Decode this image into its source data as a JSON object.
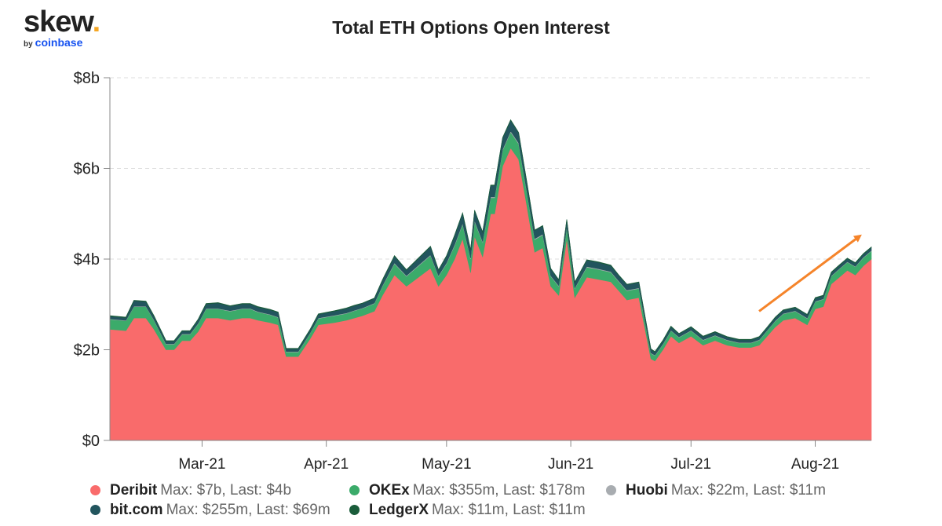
{
  "logo": {
    "main": "skew",
    "dot": ".",
    "by": "by",
    "brand": "coinbase"
  },
  "chart_data": {
    "type": "area",
    "stacked": true,
    "title": "Total ETH Options Open Interest",
    "xlabel": "",
    "ylabel": "",
    "ylim": [
      0,
      8
    ],
    "y_ticks": [
      0,
      2,
      4,
      6,
      8
    ],
    "y_tick_labels": [
      "$0",
      "$2b",
      "$4b",
      "$6b",
      "$8b"
    ],
    "x_range": [
      "2021-02-06",
      "2021-08-15"
    ],
    "x_ticks": [
      "2021-03-01",
      "2021-04-01",
      "2021-05-01",
      "2021-06-01",
      "2021-07-01",
      "2021-08-01"
    ],
    "x_tick_labels": [
      "Mar-21",
      "Apr-21",
      "May-21",
      "Jun-21",
      "Jul-21",
      "Aug-21"
    ],
    "grid": "horizontal dashed",
    "legend_position": "bottom",
    "dates": [
      "2021-02-06",
      "2021-02-10",
      "2021-02-12",
      "2021-02-15",
      "2021-02-17",
      "2021-02-20",
      "2021-02-22",
      "2021-02-24",
      "2021-02-26",
      "2021-02-28",
      "2021-03-02",
      "2021-03-05",
      "2021-03-08",
      "2021-03-11",
      "2021-03-13",
      "2021-03-15",
      "2021-03-18",
      "2021-03-20",
      "2021-03-22",
      "2021-03-25",
      "2021-03-28",
      "2021-03-30",
      "2021-04-03",
      "2021-04-06",
      "2021-04-08",
      "2021-04-10",
      "2021-04-13",
      "2021-04-15",
      "2021-04-18",
      "2021-04-21",
      "2021-04-24",
      "2021-04-27",
      "2021-04-29",
      "2021-05-01",
      "2021-05-03",
      "2021-05-05",
      "2021-05-07",
      "2021-05-08",
      "2021-05-10",
      "2021-05-12",
      "2021-05-13",
      "2021-05-15",
      "2021-05-17",
      "2021-05-19",
      "2021-05-21",
      "2021-05-23",
      "2021-05-25",
      "2021-05-27",
      "2021-05-29",
      "2021-05-31",
      "2021-06-02",
      "2021-06-05",
      "2021-06-08",
      "2021-06-11",
      "2021-06-13",
      "2021-06-15",
      "2021-06-18",
      "2021-06-21",
      "2021-06-22",
      "2021-06-24",
      "2021-06-26",
      "2021-06-28",
      "2021-07-01",
      "2021-07-04",
      "2021-07-07",
      "2021-07-10",
      "2021-07-13",
      "2021-07-16",
      "2021-07-18",
      "2021-07-20",
      "2021-07-22",
      "2021-07-24",
      "2021-07-27",
      "2021-07-30",
      "2021-08-01",
      "2021-08-03",
      "2021-08-05",
      "2021-08-07",
      "2021-08-09",
      "2021-08-11",
      "2021-08-13",
      "2021-08-15"
    ],
    "series": [
      {
        "name": "Deribit",
        "color": "#f96b6b",
        "values": [
          2.45,
          2.42,
          2.7,
          2.7,
          2.45,
          2.0,
          2.0,
          2.2,
          2.2,
          2.4,
          2.7,
          2.7,
          2.65,
          2.7,
          2.7,
          2.65,
          2.6,
          2.55,
          1.85,
          1.85,
          2.25,
          2.55,
          2.6,
          2.65,
          2.7,
          2.75,
          2.85,
          3.2,
          3.65,
          3.4,
          3.6,
          3.8,
          3.4,
          3.65,
          4.0,
          4.45,
          3.7,
          4.5,
          4.05,
          5.0,
          5.0,
          6.05,
          6.45,
          6.2,
          5.2,
          4.15,
          4.25,
          3.4,
          3.2,
          4.45,
          3.15,
          3.6,
          3.55,
          3.5,
          3.3,
          3.1,
          3.15,
          1.8,
          1.75,
          2.0,
          2.3,
          2.15,
          2.3,
          2.1,
          2.2,
          2.1,
          2.05,
          2.05,
          2.1,
          2.3,
          2.5,
          2.65,
          2.7,
          2.55,
          2.9,
          2.95,
          3.45,
          3.6,
          3.75,
          3.65,
          3.85,
          4.0
        ]
      },
      {
        "name": "OKEx",
        "color": "#3bab6a",
        "values": [
          0.22,
          0.22,
          0.25,
          0.25,
          0.2,
          0.12,
          0.12,
          0.14,
          0.14,
          0.17,
          0.2,
          0.2,
          0.2,
          0.2,
          0.2,
          0.18,
          0.17,
          0.16,
          0.1,
          0.1,
          0.12,
          0.14,
          0.15,
          0.15,
          0.16,
          0.16,
          0.17,
          0.2,
          0.25,
          0.22,
          0.25,
          0.28,
          0.22,
          0.25,
          0.3,
          0.32,
          0.3,
          0.33,
          0.32,
          0.35,
          0.35,
          0.35,
          0.35,
          0.34,
          0.3,
          0.28,
          0.28,
          0.22,
          0.2,
          0.25,
          0.2,
          0.22,
          0.22,
          0.21,
          0.2,
          0.2,
          0.2,
          0.12,
          0.12,
          0.12,
          0.12,
          0.12,
          0.12,
          0.11,
          0.11,
          0.11,
          0.1,
          0.1,
          0.11,
          0.12,
          0.13,
          0.14,
          0.15,
          0.14,
          0.16,
          0.16,
          0.17,
          0.18,
          0.18,
          0.18,
          0.18,
          0.178
        ]
      },
      {
        "name": "Huobi",
        "color": "#a8acb0",
        "values": [
          0.01,
          0.01,
          0.01,
          0.01,
          0.01,
          0.01,
          0.01,
          0.01,
          0.01,
          0.01,
          0.01,
          0.01,
          0.01,
          0.01,
          0.01,
          0.01,
          0.01,
          0.01,
          0.01,
          0.01,
          0.01,
          0.01,
          0.01,
          0.01,
          0.01,
          0.01,
          0.01,
          0.015,
          0.015,
          0.015,
          0.015,
          0.015,
          0.015,
          0.015,
          0.02,
          0.02,
          0.02,
          0.02,
          0.02,
          0.022,
          0.022,
          0.022,
          0.022,
          0.022,
          0.02,
          0.02,
          0.02,
          0.015,
          0.015,
          0.015,
          0.015,
          0.015,
          0.015,
          0.015,
          0.015,
          0.015,
          0.015,
          0.01,
          0.01,
          0.01,
          0.01,
          0.01,
          0.01,
          0.01,
          0.01,
          0.01,
          0.01,
          0.01,
          0.01,
          0.01,
          0.01,
          0.01,
          0.01,
          0.01,
          0.01,
          0.01,
          0.011,
          0.011,
          0.011,
          0.011,
          0.011,
          0.011
        ]
      },
      {
        "name": "bit.com",
        "color": "#22555e",
        "values": [
          0.06,
          0.06,
          0.12,
          0.1,
          0.08,
          0.06,
          0.06,
          0.06,
          0.06,
          0.08,
          0.1,
          0.12,
          0.1,
          0.1,
          0.1,
          0.1,
          0.1,
          0.1,
          0.06,
          0.06,
          0.07,
          0.08,
          0.09,
          0.1,
          0.1,
          0.1,
          0.1,
          0.12,
          0.15,
          0.12,
          0.15,
          0.18,
          0.12,
          0.15,
          0.2,
          0.22,
          0.18,
          0.22,
          0.2,
          0.25,
          0.25,
          0.25,
          0.24,
          0.22,
          0.2,
          0.18,
          0.18,
          0.15,
          0.12,
          0.15,
          0.12,
          0.14,
          0.14,
          0.13,
          0.12,
          0.12,
          0.12,
          0.08,
          0.07,
          0.07,
          0.08,
          0.07,
          0.07,
          0.07,
          0.07,
          0.06,
          0.06,
          0.06,
          0.06,
          0.06,
          0.07,
          0.07,
          0.07,
          0.07,
          0.07,
          0.07,
          0.07,
          0.07,
          0.07,
          0.07,
          0.07,
          0.069
        ]
      },
      {
        "name": "LedgerX",
        "color": "#1a5c3a",
        "values": [
          0.011,
          0.011,
          0.011,
          0.011,
          0.011,
          0.011,
          0.011,
          0.011,
          0.011,
          0.011,
          0.011,
          0.011,
          0.011,
          0.011,
          0.011,
          0.011,
          0.011,
          0.011,
          0.011,
          0.011,
          0.011,
          0.011,
          0.011,
          0.011,
          0.011,
          0.011,
          0.011,
          0.011,
          0.011,
          0.011,
          0.011,
          0.011,
          0.011,
          0.011,
          0.011,
          0.011,
          0.011,
          0.011,
          0.011,
          0.011,
          0.011,
          0.011,
          0.011,
          0.011,
          0.011,
          0.011,
          0.011,
          0.011,
          0.011,
          0.011,
          0.011,
          0.011,
          0.011,
          0.011,
          0.011,
          0.011,
          0.011,
          0.011,
          0.011,
          0.011,
          0.011,
          0.011,
          0.011,
          0.011,
          0.011,
          0.011,
          0.011,
          0.011,
          0.011,
          0.011,
          0.011,
          0.011,
          0.011,
          0.011,
          0.011,
          0.011,
          0.011,
          0.011,
          0.011,
          0.011,
          0.011,
          0.011
        ]
      }
    ],
    "annotations": [
      {
        "type": "arrow",
        "color": "#f5842a",
        "from": [
          "2021-07-18",
          2.85
        ],
        "to": [
          "2021-08-12",
          4.5
        ]
      }
    ]
  },
  "legend": [
    {
      "name": "Deribit",
      "stats": "Max: $7b, Last: $4b",
      "color": "#f96b6b"
    },
    {
      "name": "OKEx",
      "stats": "Max: $355m, Last: $178m",
      "color": "#3bab6a"
    },
    {
      "name": "Huobi",
      "stats": "Max: $22m, Last: $11m",
      "color": "#a8acb0"
    },
    {
      "name": "bit.com",
      "stats": "Max: $255m, Last: $69m",
      "color": "#22555e"
    },
    {
      "name": "LedgerX",
      "stats": "Max: $11m, Last: $11m",
      "color": "#1a5c3a"
    }
  ]
}
